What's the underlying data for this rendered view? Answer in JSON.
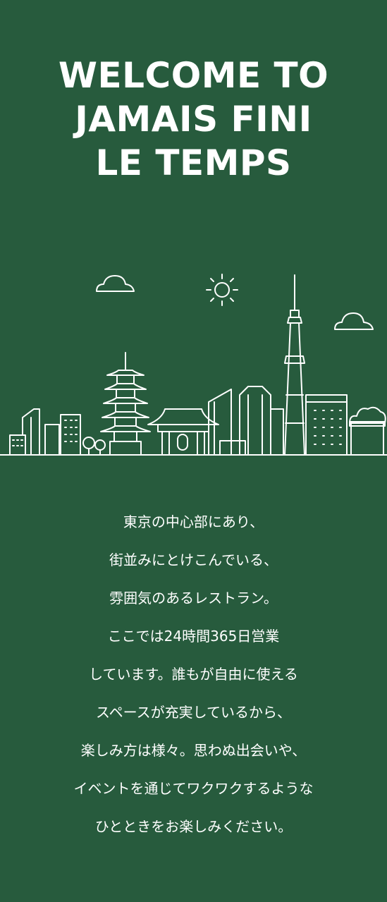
{
  "hero": {
    "title_lines": [
      "WELCOME TO",
      "JAMAIS FINI",
      "LE TEMPS"
    ]
  },
  "illustration": {
    "icon": "tokyo-skyline-icon",
    "line_color": "#ffffff",
    "background_color": "#275b3d"
  },
  "description": {
    "lines": [
      "東京の中心部にあり、",
      "街並みにとけこんでいる、",
      "雰囲気のあるレストラン。",
      "ここでは24時間365日営業",
      "しています。誰もが自由に使える",
      "スペースが充実しているから、",
      "楽しみ方は様々。思わぬ出会いや、",
      "イベントを通じてワクワクするような",
      "ひとときをお楽しみください。"
    ]
  }
}
